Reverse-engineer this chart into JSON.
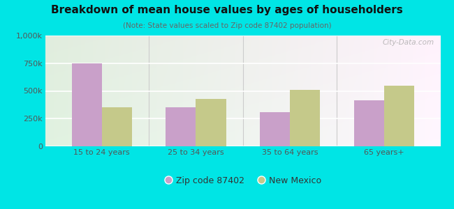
{
  "title": "Breakdown of mean house values by ages of householders",
  "subtitle": "(Note: State values scaled to Zip code 87402 population)",
  "categories": [
    "15 to 24 years",
    "25 to 34 years",
    "35 to 64 years",
    "65 years+"
  ],
  "zip_values": [
    750000,
    350000,
    310000,
    415000
  ],
  "state_values": [
    350000,
    430000,
    510000,
    545000
  ],
  "zip_color": "#c9a0c9",
  "state_color": "#c5c98a",
  "ylim": [
    0,
    1000000
  ],
  "yticks": [
    0,
    250000,
    500000,
    750000,
    1000000
  ],
  "ytick_labels": [
    "0",
    "250k",
    "500k",
    "750k",
    "1,000k"
  ],
  "legend_zip": "Zip code 87402",
  "legend_state": "New Mexico",
  "bg_outer": "#00e5e5",
  "watermark": "City-Data.com"
}
